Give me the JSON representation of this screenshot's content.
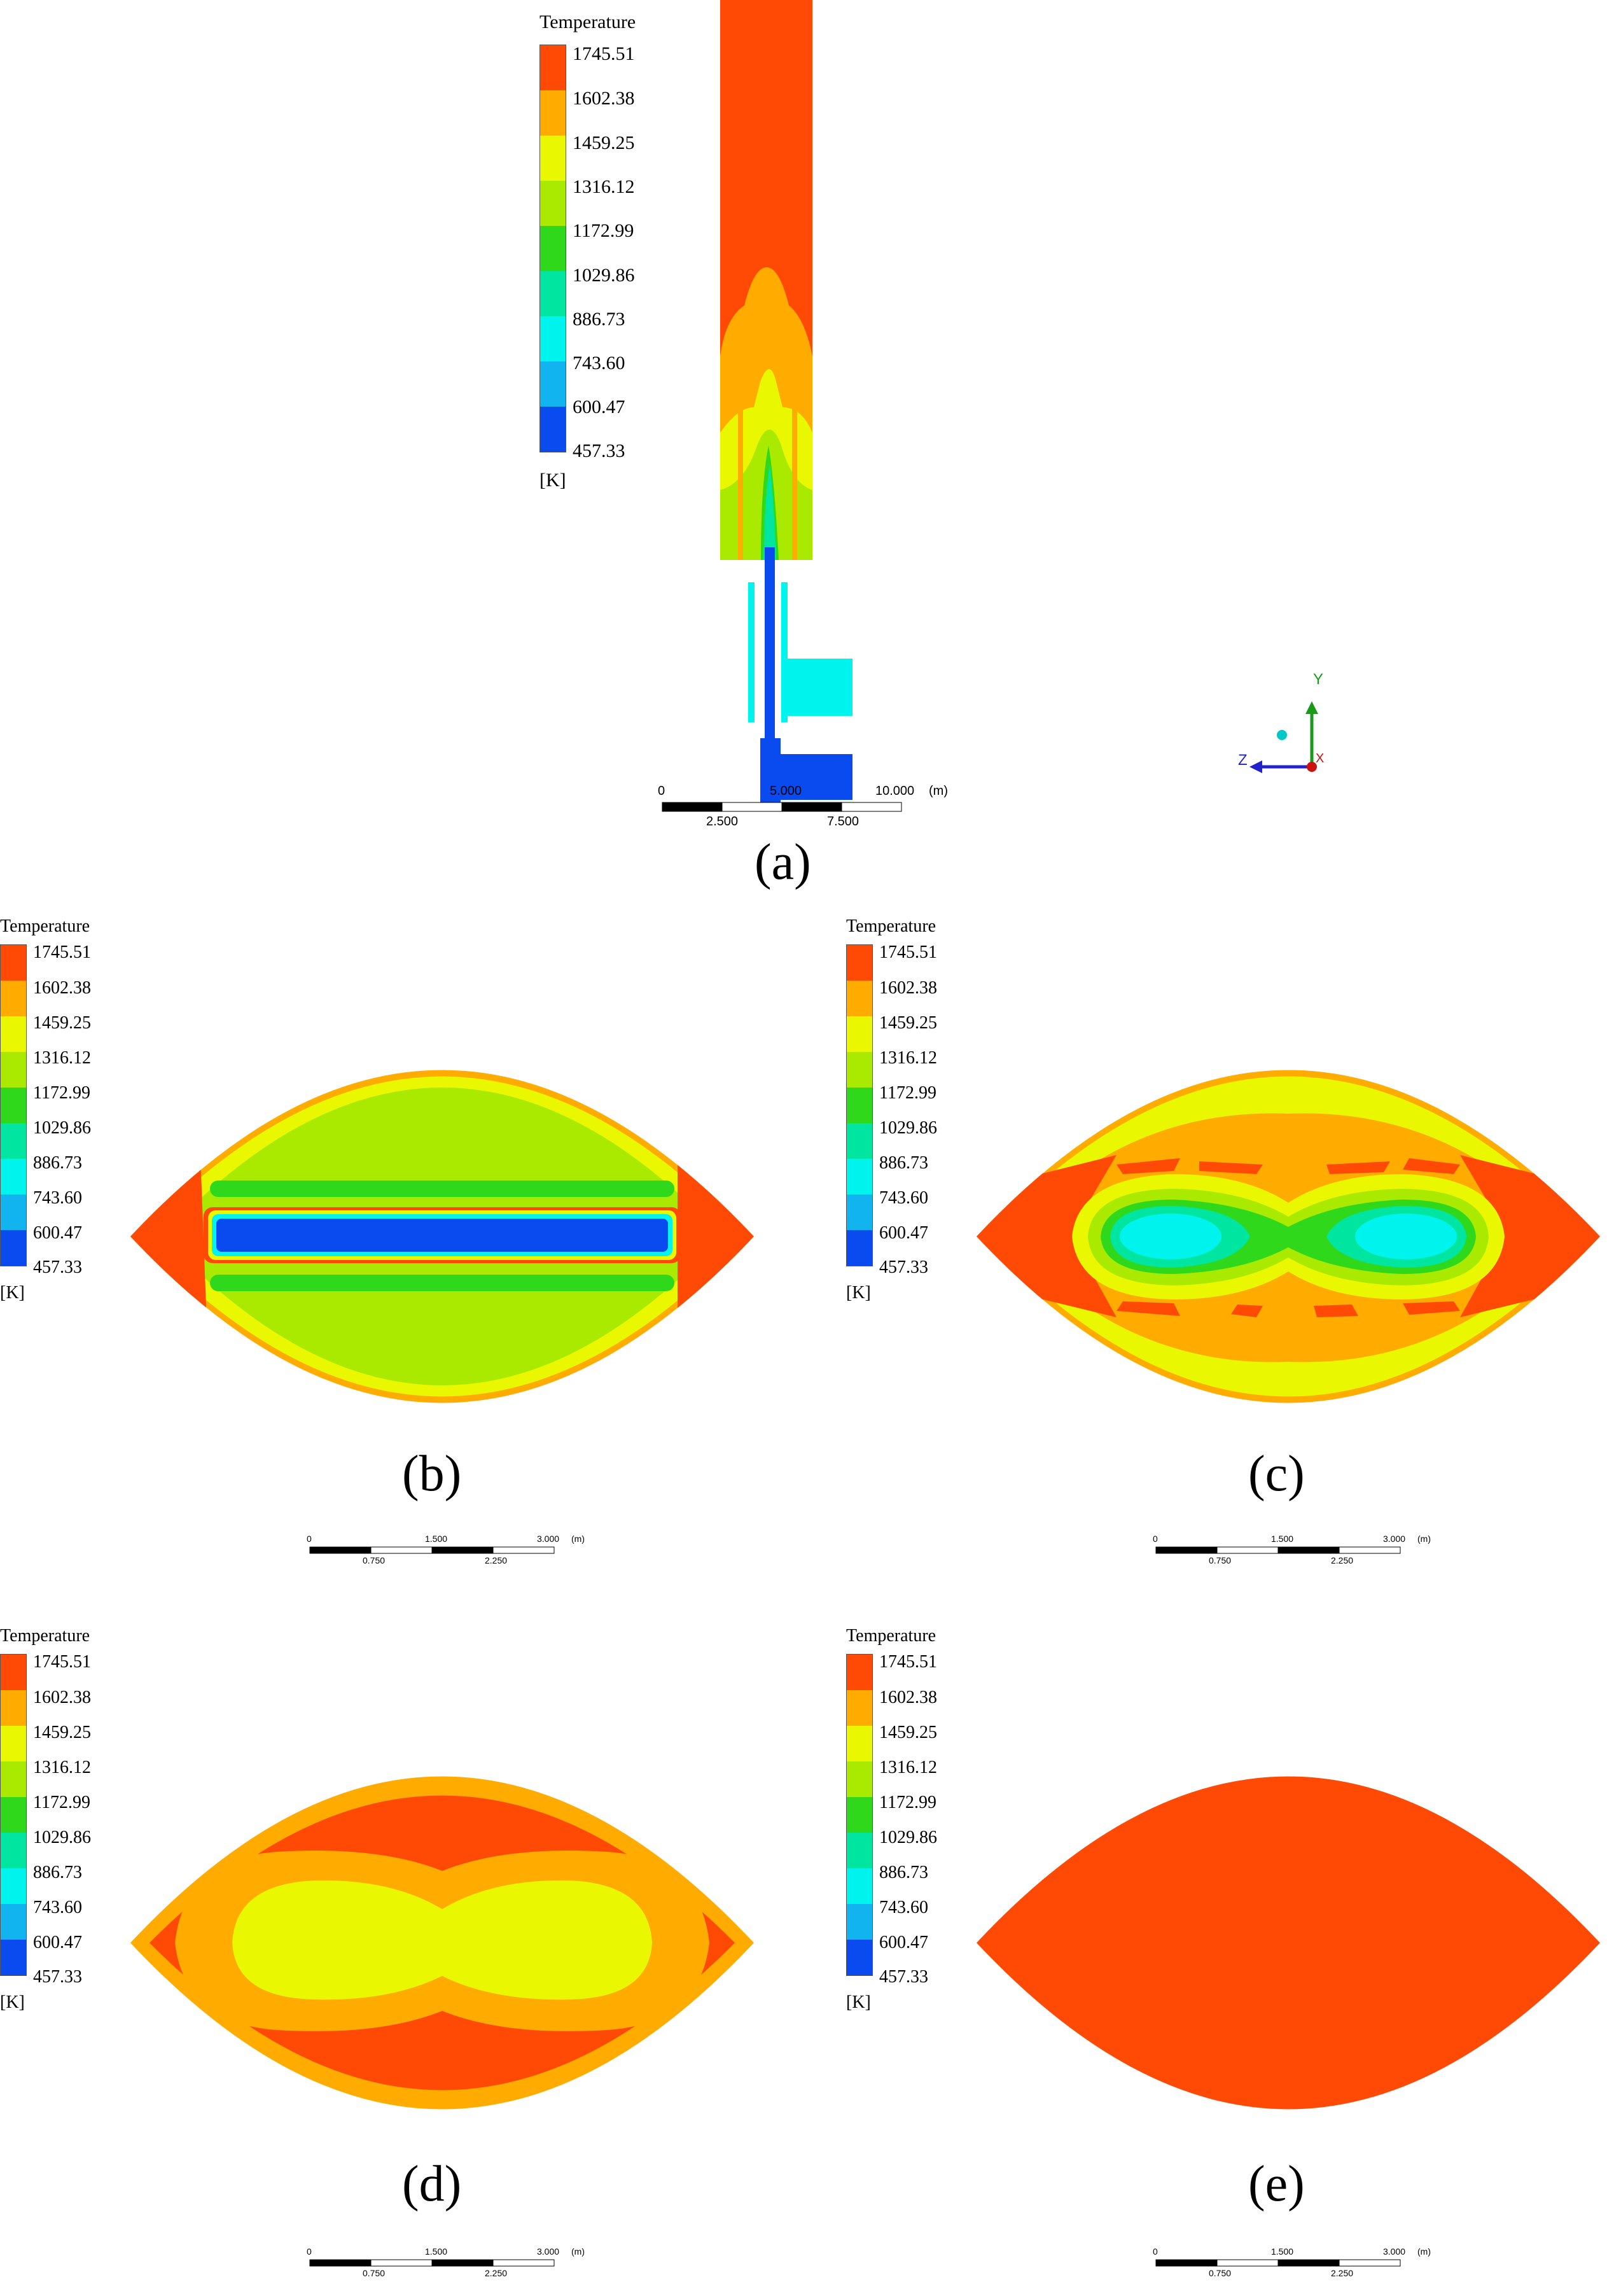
{
  "colors": [
    "#ff4a06",
    "#ffab00",
    "#e9f700",
    "#a9ea00",
    "#30d81c",
    "#00e6a0",
    "#00f4ee",
    "#12b4f0",
    "#0a4bf0"
  ],
  "legend": {
    "title": "Temperature",
    "values": [
      "1745.51",
      "1602.38",
      "1459.25",
      "1316.12",
      "1172.99",
      "1029.86",
      "886.73",
      "743.60",
      "600.47",
      "457.33"
    ],
    "unit": "[K]"
  },
  "panels": {
    "a": {
      "label": "(a)"
    },
    "b": {
      "label": "(b)"
    },
    "c": {
      "label": "(c)"
    },
    "d": {
      "label": "(d)"
    },
    "e": {
      "label": "(e)"
    }
  },
  "scalebar_large": {
    "ticks": [
      "0",
      "5.000",
      "10.000"
    ],
    "unit": "(m)",
    "minor": [
      "2.500",
      "7.500"
    ]
  },
  "scalebar_small": {
    "ticks": [
      "0",
      "1.500",
      "3.000"
    ],
    "unit": "(m)",
    "minor": [
      "0.750",
      "2.250"
    ]
  },
  "axes": {
    "y": "Y",
    "z": "Z",
    "x": "X"
  }
}
